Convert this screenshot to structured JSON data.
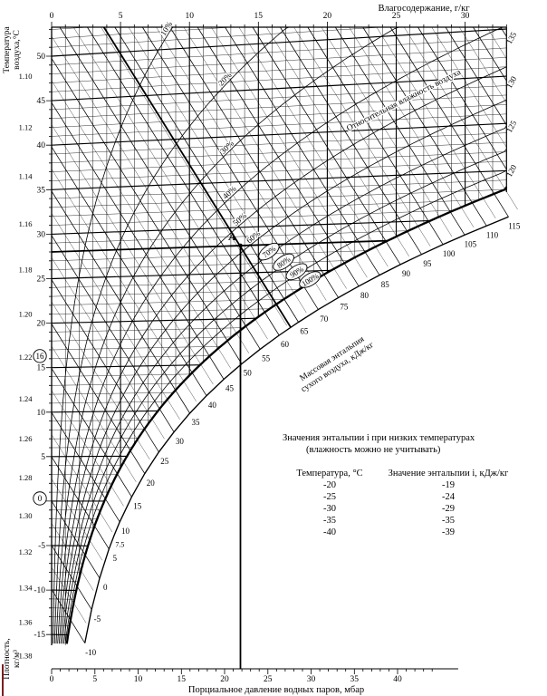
{
  "chart_data": {
    "type": "line",
    "chart_kind": "psychrometric-mollier-i-d-diagram",
    "total_pressure_mbar": 1000,
    "moisture_axis": {
      "title": "Влагосодержание, г/кг",
      "unit": "г/кг",
      "min": 0,
      "max": 33,
      "labeled_ticks": [
        0,
        5,
        10,
        15,
        20,
        25,
        30
      ],
      "minor_step": 1
    },
    "temperature_axis": {
      "title": "Температура воздуха,°С",
      "title_line1": "Температура",
      "title_line2": "воздуха,°С",
      "min": -15,
      "max": 50,
      "labeled_ticks": [
        50,
        45,
        40,
        35,
        30,
        25,
        20,
        15,
        10,
        5,
        0,
        -5,
        -10,
        -15
      ],
      "minor_step": 1,
      "circled_values": [
        16,
        0
      ]
    },
    "density_axis": {
      "title_line1": "Плотность,",
      "title_line2": "кг/м³",
      "unit": "кг/м³",
      "labels": [
        "1.10",
        "1.12",
        "1.14",
        "1.16",
        "1.18",
        "1.20",
        "1.22",
        "1.24",
        "1.26",
        "1.28",
        "1.30",
        "1.32",
        "1.34",
        "1.36",
        "1.38"
      ]
    },
    "pressure_axis": {
      "title": "Порциальное давление водных паров, мбар",
      "unit": "мбар",
      "min": 0,
      "max": 44,
      "labeled_ticks": [
        0,
        5,
        10,
        15,
        20,
        25,
        30,
        35,
        40
      ],
      "minor_step": 1
    },
    "relative_humidity": {
      "title": "Относительная влажность воздуха",
      "curves_percent": [
        10,
        20,
        30,
        40,
        50,
        60,
        70,
        80,
        90,
        100
      ],
      "circled_label_percent": [
        70,
        80,
        90,
        100
      ],
      "label_anchor_temp_c": {
        "10": 52,
        "20": 46,
        "30": 38.5,
        "40": 33.5,
        "50": 30.5,
        "60": 28.5,
        "70": 27,
        "80": 25.8,
        "90": 24.7,
        "100": 23.8
      }
    },
    "enthalpy": {
      "title": "Массовая энтальпия сухого воздуха, кДж/кг",
      "title_line1": "Массовая энтальпия",
      "title_line2": "сухого воздуха, кДж/кг",
      "unit": "кДж/кг",
      "isoline_major_step": 5,
      "isoline_minor_step": 2.5,
      "scale_labels": [
        -10,
        -5,
        0,
        5,
        7.5,
        10,
        15,
        20,
        25,
        30,
        35,
        40,
        45,
        50,
        55,
        60,
        65,
        70,
        75,
        80,
        85,
        90,
        95,
        100,
        105,
        110,
        115
      ],
      "right_edge_labels": [
        120,
        125,
        130,
        135
      ]
    },
    "example_point": {
      "label": "A",
      "temperature_c": 28,
      "moisture_g_kg": 13.7,
      "enthalpy_kj_kg": 63
    },
    "low_temp_table": {
      "title": "Значения энтальпии i при низких температурах",
      "subtitle": "(влажность можно не учитывать)",
      "col1": "Температура, °С",
      "col2": "Значение энтальпии i, кДж/кг",
      "rows": [
        [
          "-20",
          "-19"
        ],
        [
          "-25",
          "-24"
        ],
        [
          "-30",
          "-29"
        ],
        [
          "-35",
          "-35"
        ],
        [
          "-40",
          "-39"
        ]
      ]
    }
  }
}
